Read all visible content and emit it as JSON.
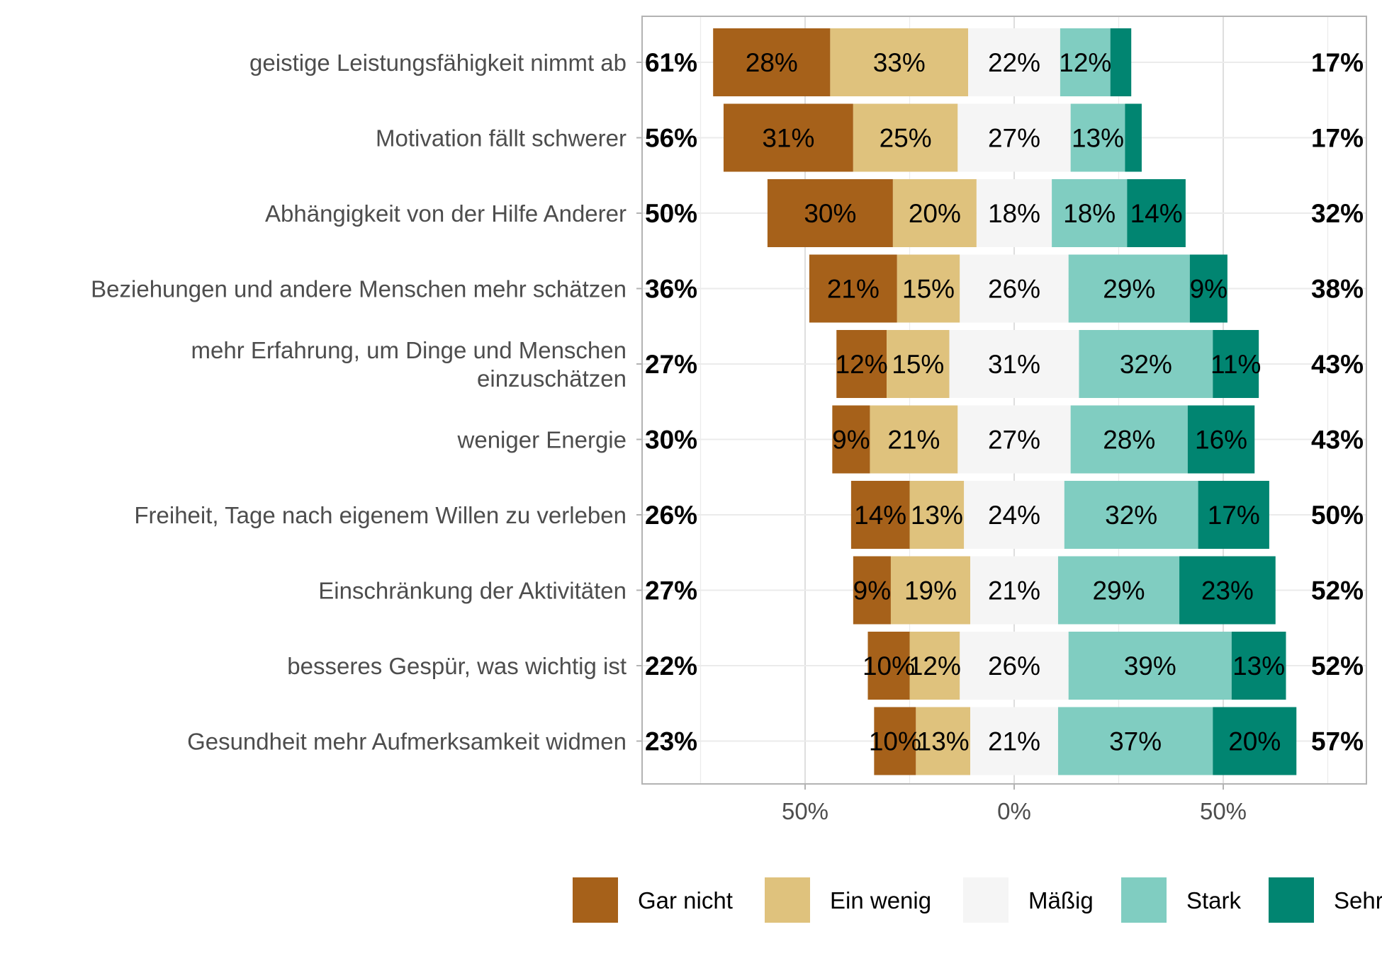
{
  "chart_data": {
    "type": "bar",
    "orientation": "horizontal",
    "stacked": "diverging",
    "categories": [
      "geistige Leistungsfähigkeit nimmt ab",
      "Motivation fällt schwerer",
      "Abhängigkeit von der Hilfe Anderer",
      "Beziehungen und andere Menschen mehr schätzen",
      "mehr Erfahrung, um Dinge und Menschen einzuschätzen",
      "weniger Energie",
      "Freiheit, Tage nach eigenem Willen zu verleben",
      "Einschränkung der Aktivitäten",
      "besseres Gespür, was wichtig ist",
      "Gesundheit mehr Aufmerksamkeit widmen"
    ],
    "series": [
      {
        "name": "Gar nicht",
        "color": "#A6611A",
        "values": [
          28,
          31,
          30,
          21,
          12,
          9,
          14,
          9,
          10,
          10
        ]
      },
      {
        "name": "Ein wenig",
        "color": "#DFC27D",
        "values": [
          33,
          25,
          20,
          15,
          15,
          21,
          13,
          19,
          12,
          13
        ]
      },
      {
        "name": "Mäßig",
        "color": "#F5F5F5",
        "values": [
          22,
          27,
          18,
          26,
          31,
          27,
          24,
          21,
          26,
          21
        ]
      },
      {
        "name": "Stark",
        "color": "#80CDC1",
        "values": [
          12,
          13,
          18,
          29,
          32,
          28,
          32,
          29,
          39,
          37
        ]
      },
      {
        "name": "Sehr",
        "color": "#018571",
        "values": [
          5,
          4,
          14,
          9,
          11,
          16,
          17,
          23,
          13,
          20
        ]
      }
    ],
    "segment_labels": [
      [
        "28%",
        "33%",
        "22%",
        "12%",
        ""
      ],
      [
        "31%",
        "25%",
        "27%",
        "13%",
        ""
      ],
      [
        "30%",
        "20%",
        "18%",
        "18%",
        "14%"
      ],
      [
        "21%",
        "15%",
        "26%",
        "29%",
        "9%"
      ],
      [
        "12%",
        "15%",
        "31%",
        "32%",
        "11%"
      ],
      [
        "9%",
        "21%",
        "27%",
        "28%",
        "16%"
      ],
      [
        "14%",
        "13%",
        "24%",
        "32%",
        "17%"
      ],
      [
        "9%",
        "19%",
        "21%",
        "29%",
        "23%"
      ],
      [
        "10%",
        "12%",
        "26%",
        "39%",
        "13%"
      ],
      [
        "10%",
        "13%",
        "21%",
        "37%",
        "20%"
      ]
    ],
    "low_totals": [
      "61%",
      "56%",
      "50%",
      "36%",
      "27%",
      "30%",
      "26%",
      "27%",
      "22%",
      "23%"
    ],
    "high_totals": [
      "17%",
      "17%",
      "32%",
      "38%",
      "43%",
      "43%",
      "50%",
      "52%",
      "52%",
      "57%"
    ],
    "x_ticks": [
      {
        "value": -50,
        "label": "50%"
      },
      {
        "value": 0,
        "label": "0%"
      },
      {
        "value": 50,
        "label": "50%"
      }
    ],
    "xlim": [
      -90,
      85
    ],
    "grid": true,
    "legend_position": "bottom"
  }
}
